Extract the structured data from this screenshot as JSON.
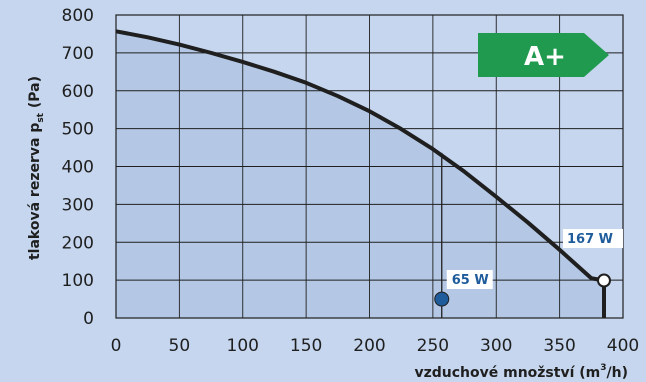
{
  "chart_data": {
    "type": "line",
    "x_label": {
      "main": "vzduchové množství (m",
      "sup": "3",
      "tail": "/h)"
    },
    "y_label": {
      "main": "tlaková rezerva p",
      "sub": "st",
      "tail": " (Pa)"
    },
    "xlim": [
      0,
      400
    ],
    "ylim": [
      0,
      800
    ],
    "x_ticks": [
      "0",
      "50",
      "100",
      "150",
      "200",
      "250",
      "300",
      "350",
      "400"
    ],
    "y_ticks": [
      "0",
      "100",
      "200",
      "300",
      "400",
      "500",
      "600",
      "700",
      "800"
    ],
    "grid": true,
    "curve": {
      "x": [
        0,
        25,
        50,
        75,
        100,
        125,
        150,
        175,
        200,
        225,
        250,
        275,
        300,
        325,
        350,
        375,
        385
      ],
      "y": [
        757,
        741,
        722,
        700,
        676,
        650,
        621,
        586,
        546,
        499,
        446,
        386,
        320,
        252,
        180,
        105,
        99
      ]
    },
    "cutoff_x": 385,
    "operating_point": {
      "x": 257,
      "y": 50,
      "label": "65 W",
      "line_to_y": 436
    },
    "max_point": {
      "x": 385,
      "y": 99,
      "label": "167 W"
    },
    "badge": {
      "text": "A+",
      "color": "#1f9a4e"
    },
    "colors": {
      "background": "#c5d6ee",
      "fill": "#b4c8e5",
      "curve": "#1f1f1f",
      "point": "#1f5c9c",
      "label": "#1f5c9c"
    }
  }
}
